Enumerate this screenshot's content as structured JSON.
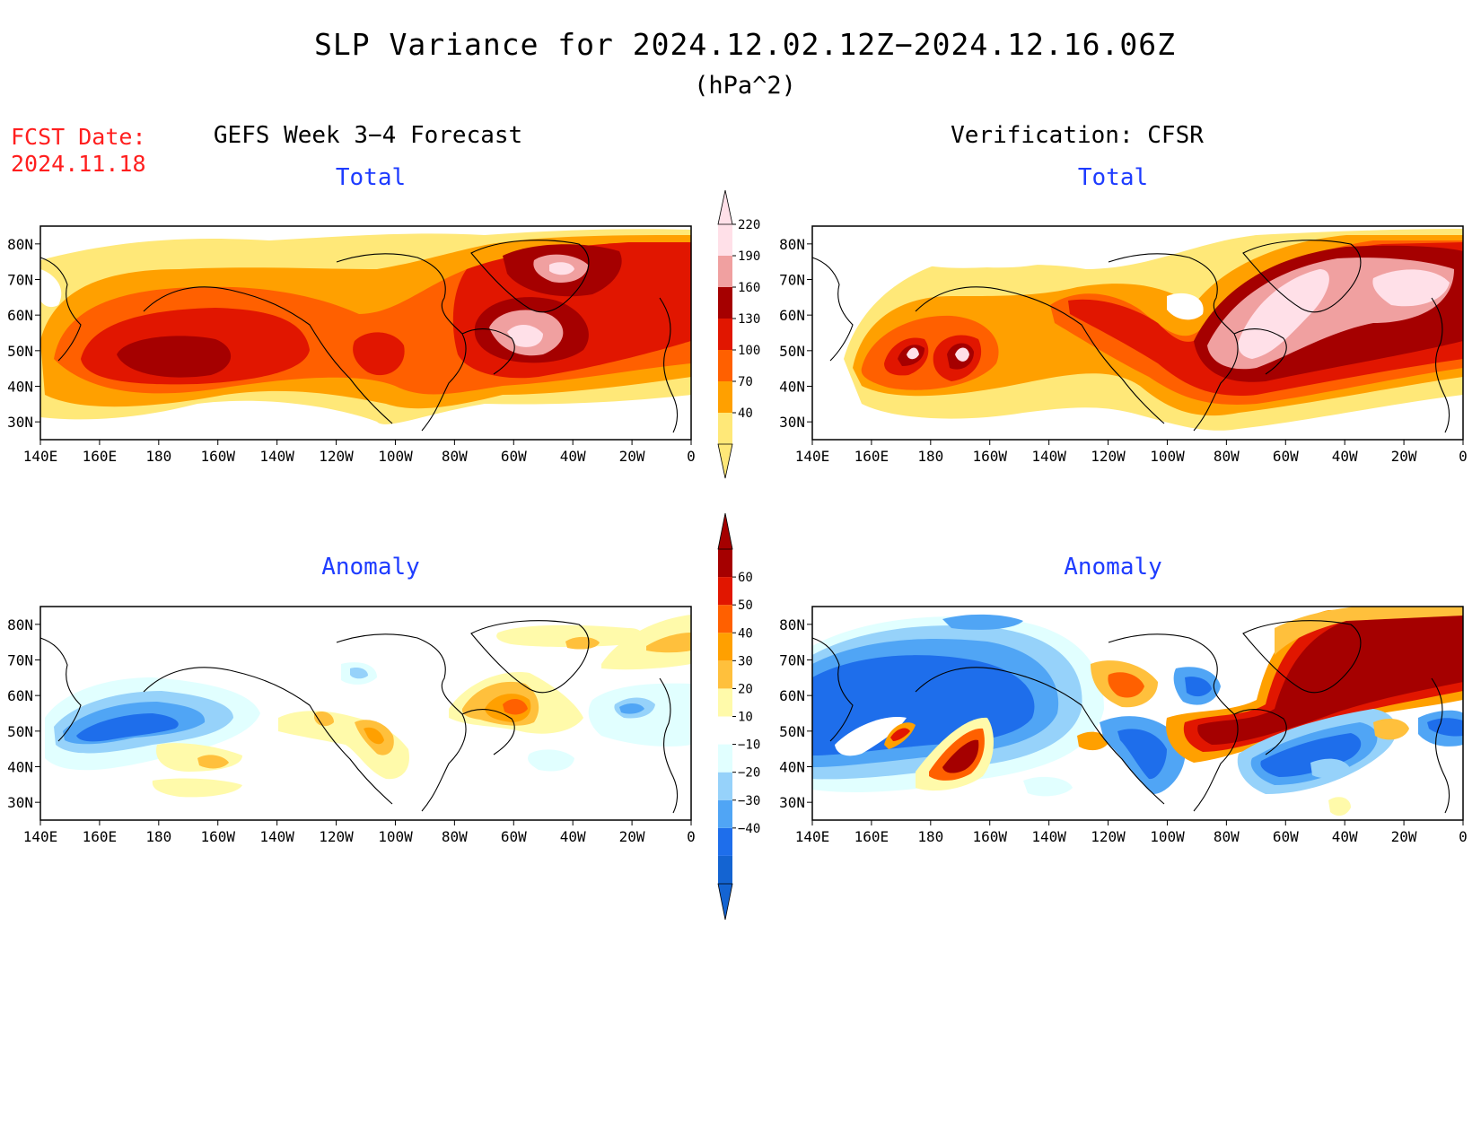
{
  "header": {
    "title": "SLP Variance for 2024.12.02.12Z−2024.12.16.06Z",
    "units": "(hPa^2)",
    "fcst_label": "FCST Date:",
    "fcst_date": "2024.11.18",
    "left_column": "GEFS Week 3−4 Forecast",
    "right_column": "Verification: CFSR"
  },
  "panels": {
    "forecast_total": {
      "title": "Total"
    },
    "verification_total": {
      "title": "Total"
    },
    "forecast_anomaly": {
      "title": "Anomaly"
    },
    "verification_anomaly": {
      "title": "Anomaly"
    }
  },
  "axes": {
    "lat_labels": [
      "80N",
      "70N",
      "60N",
      "50N",
      "40N",
      "30N"
    ],
    "lon_labels": [
      "140E",
      "160E",
      "180",
      "160W",
      "140W",
      "120W",
      "100W",
      "80W",
      "60W",
      "40W",
      "20W",
      "0"
    ]
  },
  "colorbars": {
    "total": {
      "levels": [
        "40",
        "70",
        "100",
        "130",
        "160",
        "190",
        "220"
      ],
      "colors": [
        "#ffe878",
        "#ffa000",
        "#ff6000",
        "#e11600",
        "#a50000",
        "#f0a0a0",
        "#ffe0e8"
      ]
    },
    "anomaly": {
      "levels": [
        "−40",
        "−30",
        "−20",
        "−10",
        "10",
        "20",
        "30",
        "40",
        "50",
        "60"
      ],
      "colors": [
        "#1464d2",
        "#1e6eeb",
        "#50a5f5",
        "#96d2fa",
        "#e1ffff",
        "#ffffff",
        "#fffaaa",
        "#ffc03c",
        "#ffa000",
        "#ff6000",
        "#e11600",
        "#a50000"
      ]
    }
  }
}
